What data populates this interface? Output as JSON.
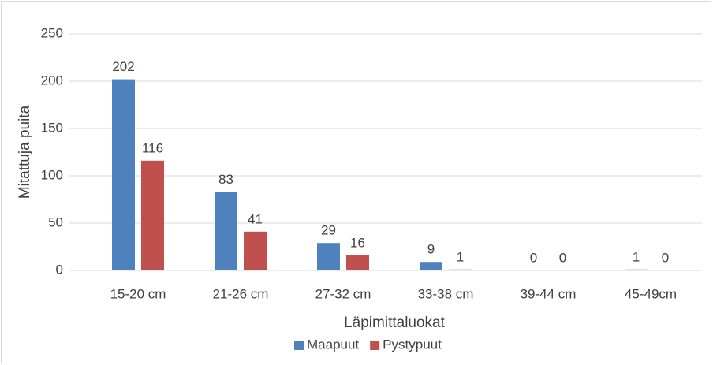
{
  "chart_data": {
    "type": "bar",
    "y_label": "Mitattuja puita",
    "x_label": "Läpimittaluokat",
    "categories": [
      "15-20 cm",
      "21-26 cm",
      "27-32 cm",
      "33-38 cm",
      "39-44 cm",
      "45-49cm"
    ],
    "series": [
      {
        "name": "Maapuut",
        "color": "#4f81bd",
        "values": [
          202,
          83,
          29,
          9,
          0,
          1
        ]
      },
      {
        "name": "Pystypuut",
        "color": "#c0504d",
        "values": [
          116,
          41,
          16,
          1,
          0,
          0
        ]
      }
    ],
    "ylim": [
      0,
      250
    ],
    "yticks": [
      0,
      50,
      100,
      150,
      200,
      250
    ],
    "grid": true,
    "legend": "bottom"
  }
}
